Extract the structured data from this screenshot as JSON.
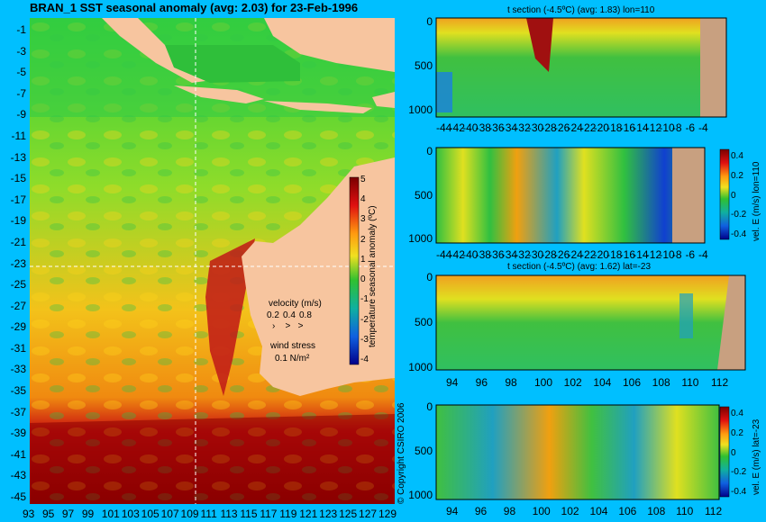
{
  "chart_data": [
    {
      "type": "heatmap",
      "title": "BRAN_1 SST seasonal anomaly (avg: 2.03) for 23-Feb-1996",
      "x_ticks": [
        "93",
        "95",
        "97",
        "99",
        "101",
        "103",
        "105",
        "107",
        "109",
        "111",
        "113",
        "115",
        "117",
        "119",
        "121",
        "123",
        "125",
        "127",
        "129"
      ],
      "y_ticks": [
        "-1",
        "-3",
        "-5",
        "-7",
        "-9",
        "-11",
        "-13",
        "-15",
        "-17",
        "-19",
        "-21",
        "-23",
        "-25",
        "-27",
        "-29",
        "-31",
        "-33",
        "-35",
        "-37",
        "-39",
        "-41",
        "-43",
        "-45"
      ],
      "xlim": [
        93,
        130
      ],
      "ylim": [
        -45,
        0
      ],
      "colorbar": {
        "label": "temperature seasonal anomaly (ºC)",
        "ticks": [
          "5",
          "4",
          "3",
          "2",
          "1",
          "0",
          "-1",
          "-2",
          "-3",
          "-4"
        ],
        "range": [
          -4,
          5
        ]
      },
      "legend": {
        "velocity_label": "velocity (m/s)",
        "velocity_values": [
          "0.2",
          "0.4",
          "0.8"
        ],
        "wind_label": "wind stress",
        "wind_value": "0.1 N/m²"
      },
      "section_lines": {
        "lon": 110,
        "lat": -23
      }
    },
    {
      "type": "heatmap",
      "title": "t section (-4.5ºC) (avg: 1.83) lon=110",
      "x_ticks": [
        "-44",
        "-42",
        "-40",
        "-38",
        "-36",
        "-34",
        "-32",
        "-30",
        "-28",
        "-26",
        "-24",
        "-22",
        "-20",
        "-18",
        "-16",
        "-14",
        "-12",
        "-10",
        "-8",
        "-6",
        "-4"
      ],
      "y_ticks": [
        "0",
        "500",
        "1000"
      ],
      "xlim": [
        -45,
        -2
      ],
      "ylim": [
        1050,
        0
      ]
    },
    {
      "type": "heatmap",
      "title": "",
      "x_ticks": [
        "-44",
        "-42",
        "-40",
        "-38",
        "-36",
        "-34",
        "-32",
        "-30",
        "-28",
        "-26",
        "-24",
        "-22",
        "-20",
        "-18",
        "-16",
        "-14",
        "-12",
        "-10",
        "-8",
        "-6",
        "-4"
      ],
      "y_ticks": [
        "0",
        "500",
        "1000"
      ],
      "xlim": [
        -45,
        -2
      ],
      "ylim": [
        1050,
        0
      ],
      "colorbar": {
        "label": "vel. E (m/s) lon=110",
        "ticks": [
          "0.4",
          "0.2",
          "0",
          "-0.2",
          "-0.4"
        ],
        "range": [
          -0.5,
          0.5
        ]
      }
    },
    {
      "type": "heatmap",
      "title": "t section (-4.5ºC) (avg: 1.62) lat=-23",
      "x_ticks": [
        "94",
        "96",
        "98",
        "100",
        "102",
        "104",
        "106",
        "108",
        "110",
        "112"
      ],
      "y_ticks": [
        "0",
        "500",
        "1000"
      ],
      "xlim": [
        93,
        114
      ],
      "ylim": [
        1050,
        0
      ]
    },
    {
      "type": "heatmap",
      "title": "",
      "x_ticks": [
        "94",
        "96",
        "98",
        "100",
        "102",
        "104",
        "106",
        "108",
        "110",
        "112"
      ],
      "y_ticks": [
        "0",
        "500",
        "1000"
      ],
      "xlim": [
        93,
        114
      ],
      "ylim": [
        1050,
        0
      ],
      "colorbar": {
        "label": "vel. E (m/s) lat=-23",
        "ticks": [
          "0.4",
          "0.2",
          "0",
          "-0.2",
          "-0.4"
        ],
        "range": [
          -0.5,
          0.5
        ]
      }
    }
  ],
  "copyright": "© Copyright CSIRO 2006",
  "colors": {
    "background": "#00bfff",
    "land": "#f7c59f",
    "ocean": "#22c55e"
  }
}
